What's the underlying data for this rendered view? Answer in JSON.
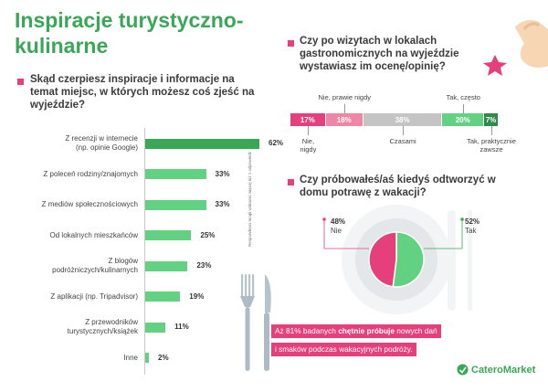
{
  "title": "Inspiracje turystyczno-kulinarne",
  "left": {
    "question": "Skąd czerpiesz inspiracje i informacje na temat miejsc, w których możesz coś zjeść na wyjeździe?",
    "side_note": "Respondenci mogli wskazać więcej niż 1 odpowiedź"
  },
  "colors": {
    "green": "#3aa757",
    "green_light": "#62d282",
    "pink": "#e5407c",
    "pink_light": "#ef86a8",
    "grey": "#c4c4c4",
    "dark_green": "#2e8b4c"
  },
  "chart_data": [
    {
      "type": "bar",
      "orientation": "horizontal",
      "title": "Skąd czerpiesz inspiracje i informacje na temat miejsc, w których możesz coś zjeść na wyjeździe?",
      "categories": [
        [
          "Z recenzji w internecie",
          "(np. opinie Google)"
        ],
        [
          "Z poleceń rodziny/znajomych"
        ],
        [
          "Z mediów społecznościowych"
        ],
        [
          "Od lokalnych mieszkańców"
        ],
        [
          "Z blogów",
          "podróżniczych/kulinarnych"
        ],
        [
          "Z aplikacji (np. Tripadvisor)"
        ],
        [
          "Z przewodników",
          "turystycznych/książek"
        ],
        [
          "Inne"
        ]
      ],
      "values": [
        62,
        33,
        33,
        25,
        23,
        19,
        11,
        2
      ],
      "value_labels": [
        "62%",
        "33%",
        "33%",
        "25%",
        "23%",
        "19%",
        "11%",
        "2%"
      ],
      "xlim": [
        0,
        100
      ],
      "unit": "%"
    },
    {
      "type": "bar",
      "orientation": "stacked-horizontal",
      "title": "Czy po wizytach w lokalach gastronomicznych na wyjeździe wystawiasz im ocenę/opinię?",
      "categories": [
        "Nie, nigdy",
        "Nie, prawie nigdy",
        "Czasami",
        "Tak, często",
        "Tak, praktycznie zawsze"
      ],
      "values": [
        17,
        18,
        38,
        20,
        7
      ],
      "value_labels": [
        "17%",
        "18%",
        "38%",
        "20%",
        "7%"
      ],
      "unit": "%"
    },
    {
      "type": "pie",
      "title": "Czy próbowałeś/aś kiedyś odtworzyć w domu potrawę z wakacji?",
      "categories": [
        "Nie",
        "Tak"
      ],
      "values": [
        48,
        52
      ],
      "value_labels": [
        "48%",
        "52%"
      ],
      "unit": "%"
    }
  ],
  "footnote": {
    "line1_pre": "Aż 81% badanych ",
    "line1_bold": "chętnie próbuje",
    "line1_post": " nowych dań",
    "line2": "i smaków podczas wakacyjnych podróży."
  },
  "brand": "CateroMarket"
}
